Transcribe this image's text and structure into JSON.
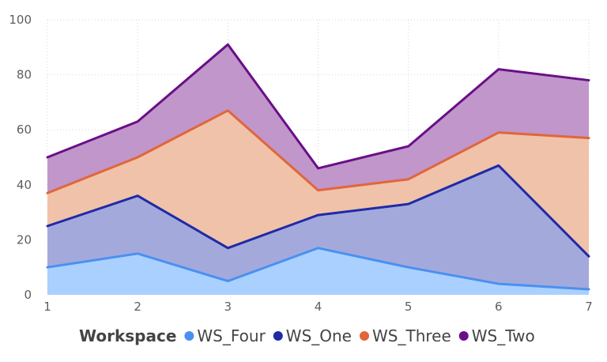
{
  "chart_data": {
    "type": "area",
    "stacked": true,
    "x": [
      1,
      2,
      3,
      4,
      5,
      6,
      7
    ],
    "xlim": [
      1,
      7
    ],
    "ylim": [
      0,
      100
    ],
    "y_ticks": [
      0,
      20,
      40,
      60,
      80,
      100
    ],
    "x_ticks": [
      1,
      2,
      3,
      4,
      5,
      6,
      7
    ],
    "grid": "dotted",
    "legend_position": "bottom",
    "legend_title": "Workspace",
    "series": [
      {
        "name": "WS_Four",
        "color": "#4a90f0",
        "fill": "#a9d0ff",
        "values": [
          10,
          15,
          5,
          17,
          10,
          4,
          2
        ]
      },
      {
        "name": "WS_One",
        "color": "#1e2ba6",
        "fill": "#a4a9dc",
        "values": [
          15,
          21,
          12,
          12,
          23,
          43,
          12
        ]
      },
      {
        "name": "WS_Three",
        "color": "#e0663a",
        "fill": "#f0c2aa",
        "values": [
          12,
          14,
          50,
          9,
          9,
          12,
          43
        ]
      },
      {
        "name": "WS_Two",
        "color": "#6a0f87",
        "fill": "#c096cb",
        "values": [
          13,
          13,
          24,
          8,
          12,
          23,
          21
        ]
      }
    ]
  }
}
